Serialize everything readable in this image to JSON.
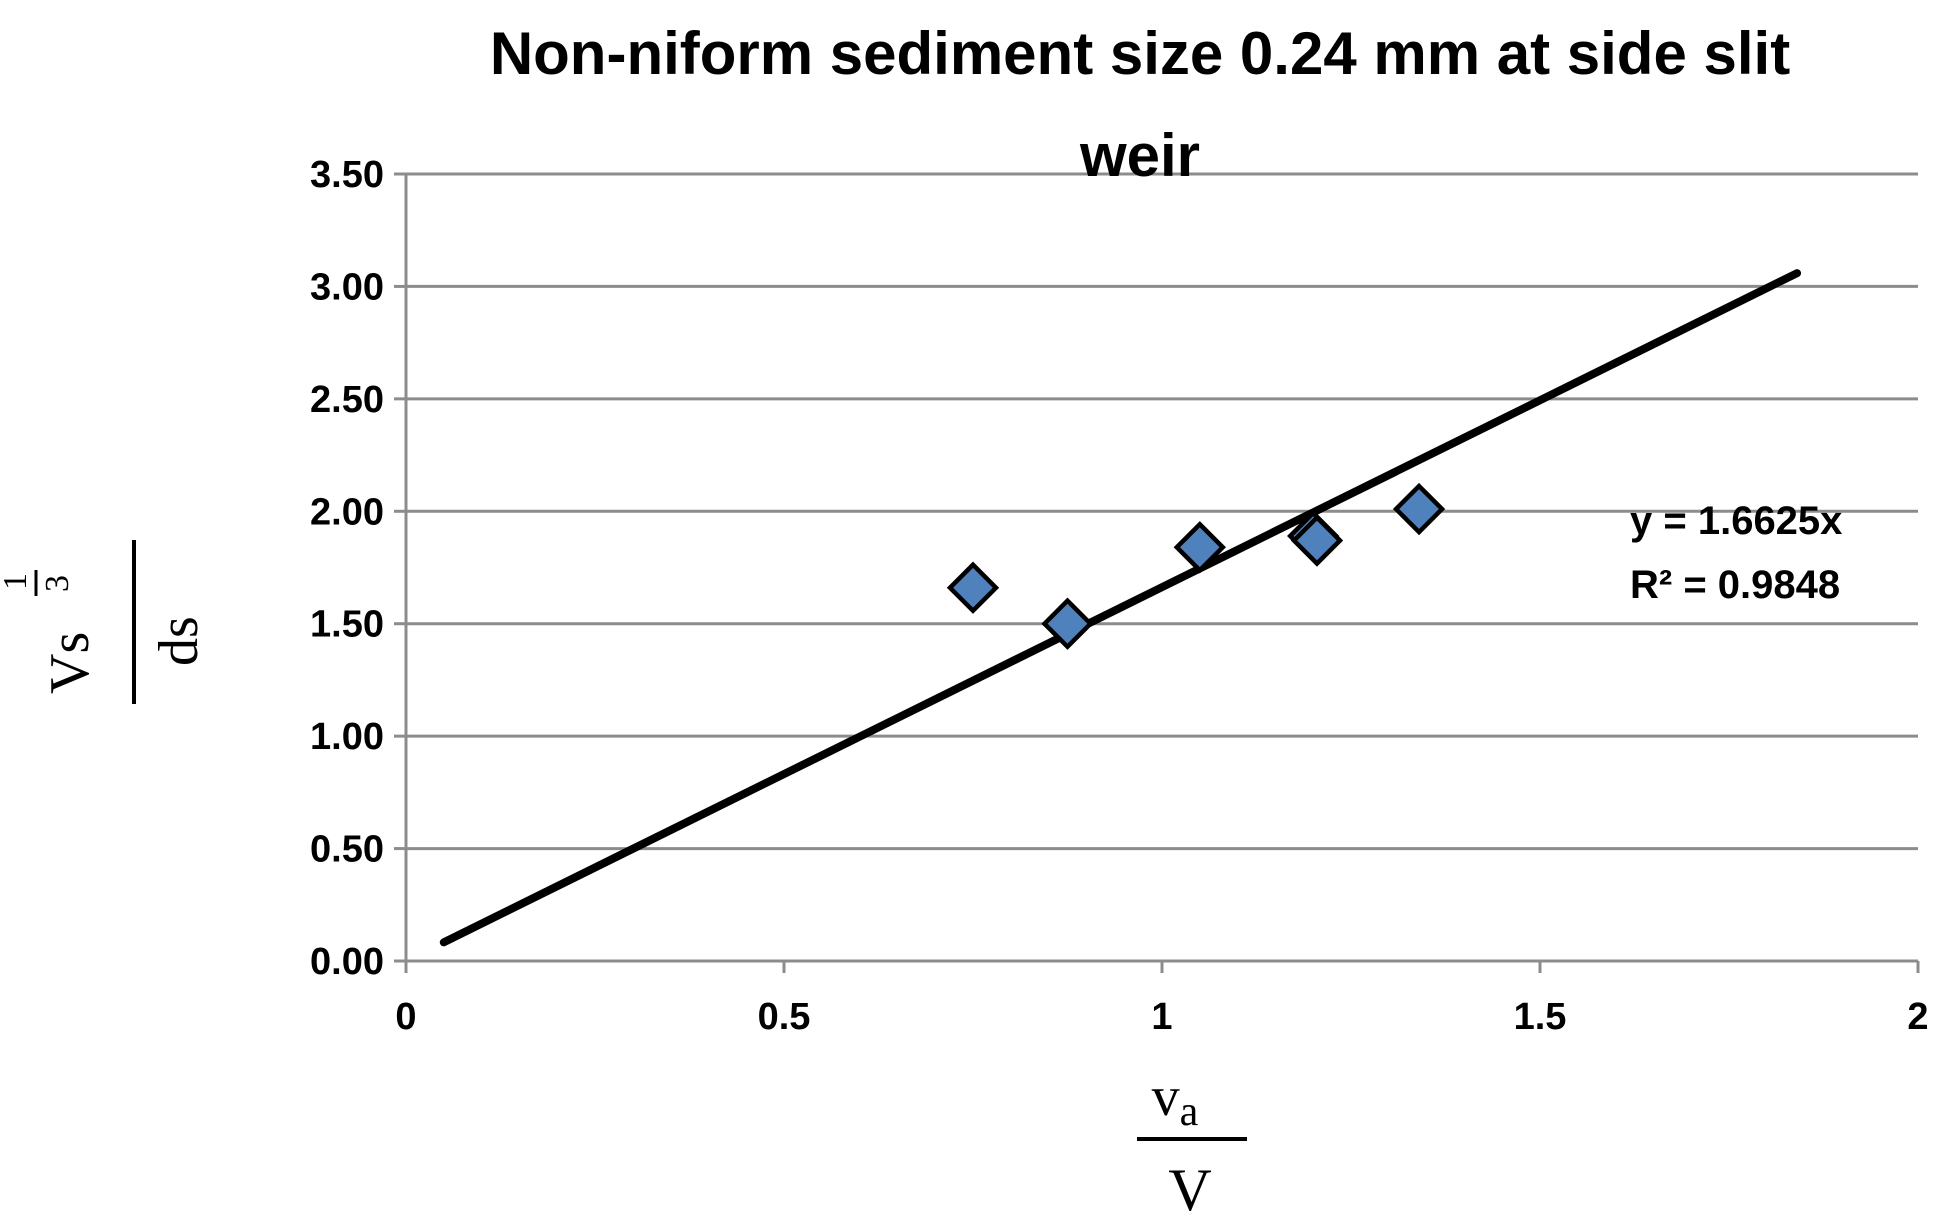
{
  "chart_data": {
    "type": "scatter",
    "title_line1": "Non-niform sediment size 0.24 mm at side slit",
    "title_line2": "weir",
    "xlabel": {
      "numerator": "v",
      "numerator_sub": "a",
      "denominator": "V"
    },
    "ylabel": {
      "numerator": "Vs",
      "numerator_sup_num": "1",
      "numerator_sup_den": "3",
      "denominator": "ds"
    },
    "xlim": [
      0,
      2
    ],
    "ylim": [
      0,
      3.5
    ],
    "x_ticks": [
      "0",
      "0.5",
      "1",
      "1.5",
      "2"
    ],
    "y_ticks": [
      "0.00",
      "0.50",
      "1.00",
      "1.50",
      "2.00",
      "2.50",
      "3.00",
      "3.50"
    ],
    "grid": "horizontal",
    "legend": "none",
    "series": [
      {
        "points": [
          {
            "x": 0.75,
            "y": 1.66
          },
          {
            "x": 0.875,
            "y": 1.5
          },
          {
            "x": 1.05,
            "y": 1.84
          },
          {
            "x": 1.2,
            "y": 1.89
          },
          {
            "x": 1.205,
            "y": 1.87
          },
          {
            "x": 1.34,
            "y": 2.01
          }
        ],
        "marker_color": "#4F81BD"
      }
    ],
    "trendline": {
      "x_start": 0.05,
      "x_end": 1.84,
      "slope": 1.6625,
      "equation": "y = 1.6625x",
      "r_squared": "R² = 0.9848"
    }
  }
}
